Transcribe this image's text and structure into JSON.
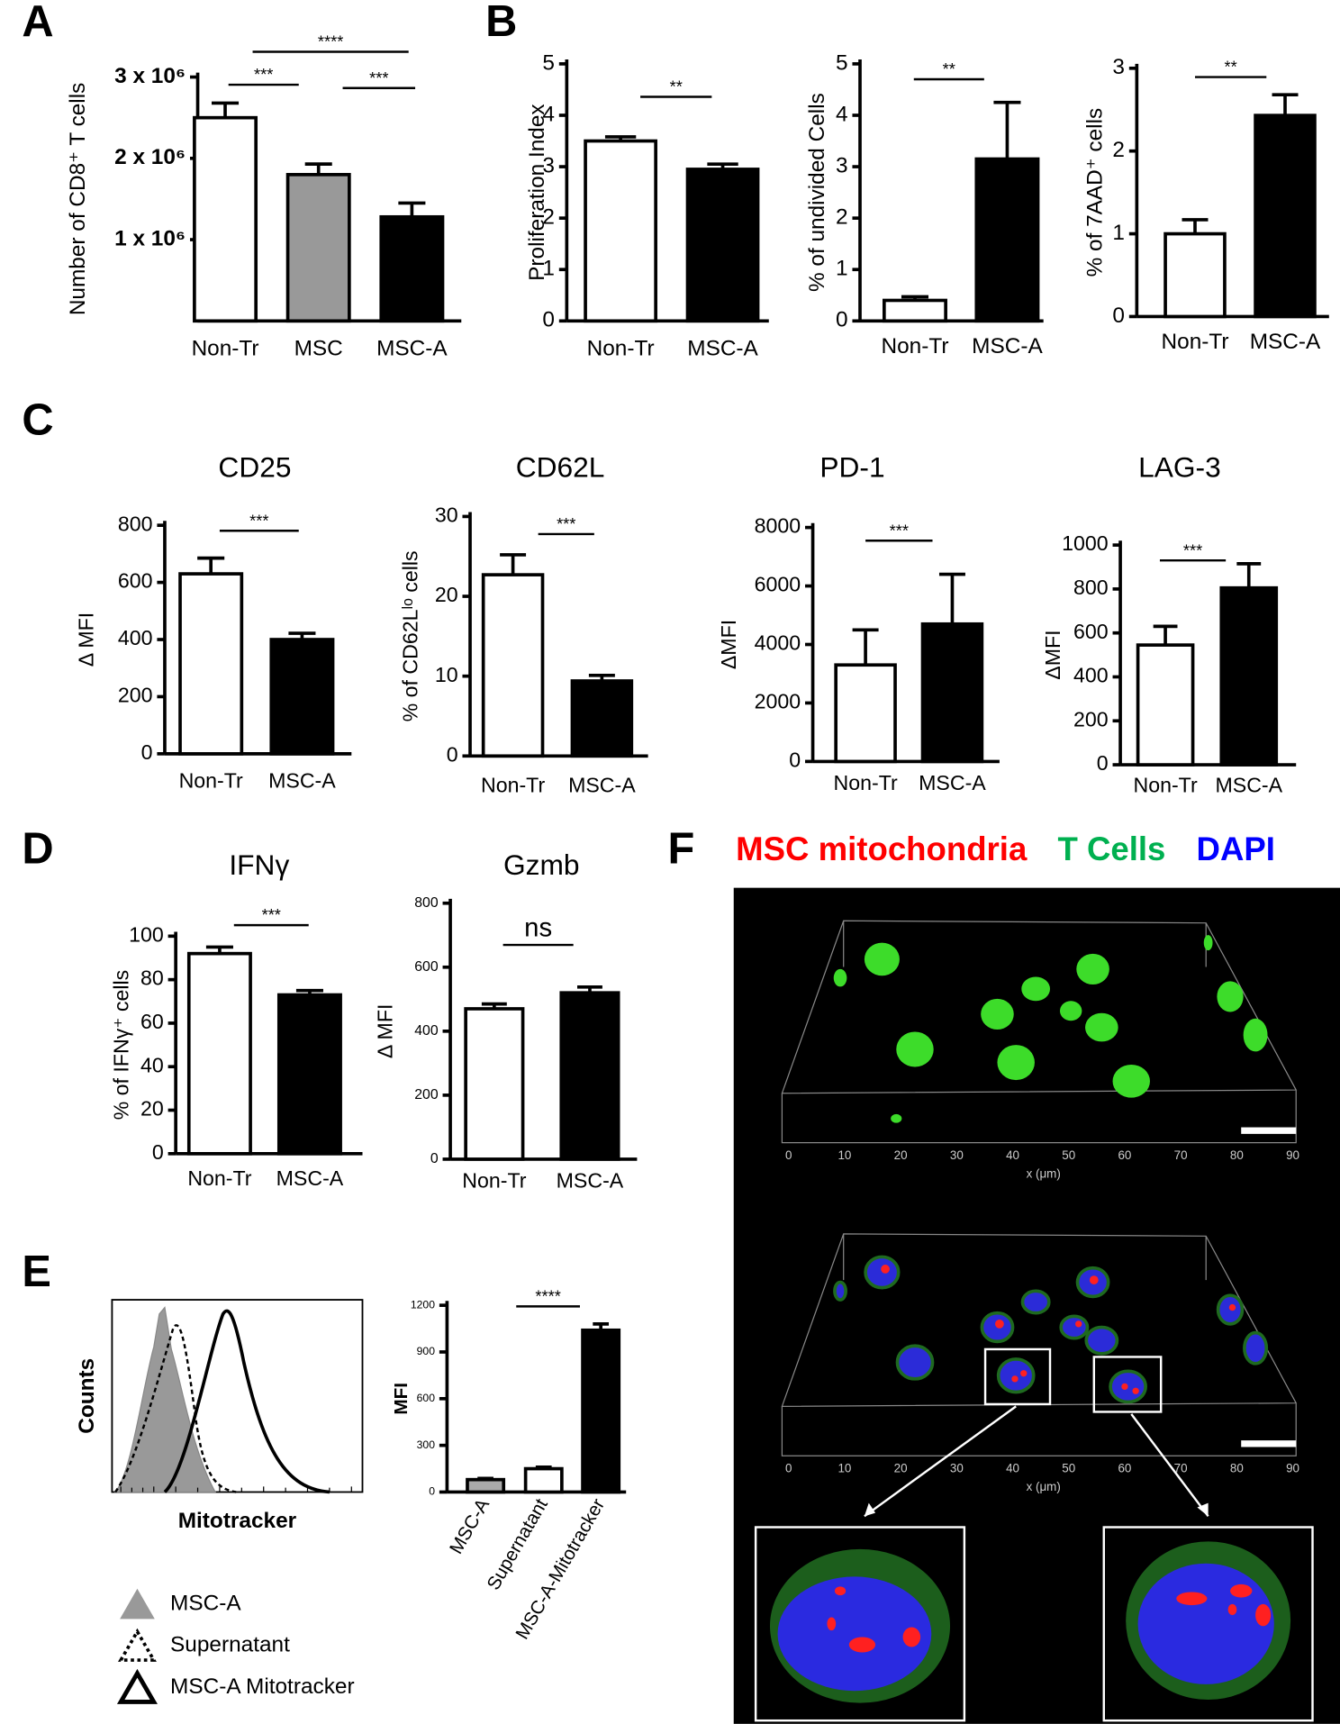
{
  "panel_labels": [
    "A",
    "B",
    "C",
    "D",
    "E",
    "F"
  ],
  "chart_data": [
    {
      "type": "bar",
      "ylabel": "Number of CD8⁺ T cells",
      "categories": [
        "Non-Tr",
        "MSC",
        "MSC-A"
      ],
      "values": [
        2500000,
        1800000,
        1280000
      ],
      "errors": [
        180000,
        130000,
        170000
      ],
      "colors": [
        "#ffffff",
        "#999999",
        "#000000"
      ],
      "ylim": [
        0,
        3000000
      ],
      "yticks": [
        {
          "value": 1000000,
          "label": "1 x 10⁶"
        },
        {
          "value": 2000000,
          "label": "2 x 10⁶"
        },
        {
          "value": 3000000,
          "label": "3 x 10⁶"
        }
      ],
      "annotations": [
        {
          "text": "***",
          "between": [
            0,
            1
          ]
        },
        {
          "text": "***",
          "between": [
            1,
            2
          ]
        },
        {
          "text": "****",
          "between": [
            0,
            2
          ]
        }
      ]
    },
    {
      "type": "bar",
      "ylabel": "Proliferation Index",
      "categories": [
        "Non-Tr",
        "MSC-A"
      ],
      "values": [
        3.5,
        2.95
      ],
      "errors": [
        0.08,
        0.1
      ],
      "colors": [
        "#ffffff",
        "#000000"
      ],
      "ylim": [
        0,
        5
      ],
      "yticks": [
        0,
        1,
        2,
        3,
        4,
        5
      ],
      "annotations": [
        {
          "text": "**",
          "between": [
            0,
            1
          ]
        }
      ]
    },
    {
      "type": "bar",
      "ylabel": "% of undivided Cells",
      "categories": [
        "Non-Tr",
        "MSC-A"
      ],
      "values": [
        0.4,
        3.15
      ],
      "errors": [
        0.07,
        1.1
      ],
      "colors": [
        "#ffffff",
        "#000000"
      ],
      "ylim": [
        0,
        5
      ],
      "yticks": [
        0,
        1,
        2,
        3,
        4,
        5
      ],
      "annotations": [
        {
          "text": "**",
          "between": [
            0,
            1
          ]
        }
      ]
    },
    {
      "type": "bar",
      "ylabel": "% of 7AAD⁺ cells",
      "categories": [
        "Non-Tr",
        "MSC-A"
      ],
      "values": [
        1.0,
        2.43
      ],
      "errors": [
        0.17,
        0.25
      ],
      "colors": [
        "#ffffff",
        "#000000"
      ],
      "ylim": [
        0,
        3
      ],
      "yticks": [
        0,
        1,
        2,
        3
      ],
      "annotations": [
        {
          "text": "**",
          "between": [
            0,
            1
          ]
        }
      ]
    },
    {
      "type": "bar",
      "title": "CD25",
      "ylabel": "Δ MFI",
      "categories": [
        "Non-Tr",
        "MSC-A"
      ],
      "values": [
        630,
        400
      ],
      "errors": [
        55,
        22
      ],
      "colors": [
        "#ffffff",
        "#000000"
      ],
      "ylim": [
        0,
        800
      ],
      "yticks": [
        0,
        200,
        400,
        600,
        800
      ],
      "annotations": [
        {
          "text": "***",
          "between": [
            0,
            1
          ]
        }
      ]
    },
    {
      "type": "bar",
      "title": "CD62L",
      "ylabel": "% of CD62Lˡᵒ cells",
      "categories": [
        "Non-Tr",
        "MSC-A"
      ],
      "values": [
        22.7,
        9.4
      ],
      "errors": [
        2.5,
        0.7
      ],
      "colors": [
        "#ffffff",
        "#000000"
      ],
      "ylim": [
        0,
        30
      ],
      "yticks": [
        0,
        10,
        20,
        30
      ],
      "annotations": [
        {
          "text": "***",
          "between": [
            0,
            1
          ]
        }
      ]
    },
    {
      "type": "bar",
      "title": "PD-1",
      "ylabel": "ΔMFI",
      "categories": [
        "Non-Tr",
        "MSC-A"
      ],
      "values": [
        3300,
        4700
      ],
      "errors": [
        1200,
        1700
      ],
      "colors": [
        "#ffffff",
        "#000000"
      ],
      "ylim": [
        0,
        8000
      ],
      "yticks": [
        0,
        2000,
        4000,
        6000,
        8000
      ],
      "annotations": [
        {
          "text": "***",
          "between": [
            0,
            1
          ]
        }
      ]
    },
    {
      "type": "bar",
      "title": "LAG-3",
      "ylabel": "ΔMFI",
      "categories": [
        "Non-Tr",
        "MSC-A"
      ],
      "values": [
        545,
        805
      ],
      "errors": [
        85,
        110
      ],
      "colors": [
        "#ffffff",
        "#000000"
      ],
      "ylim": [
        0,
        1000
      ],
      "yticks": [
        0,
        200,
        400,
        600,
        800,
        1000
      ],
      "annotations": [
        {
          "text": "***",
          "between": [
            0,
            1
          ]
        }
      ]
    },
    {
      "type": "bar",
      "title": "IFNγ",
      "ylabel": "% of IFNγ⁺ cells",
      "categories": [
        "Non-Tr",
        "MSC-A"
      ],
      "values": [
        92,
        73
      ],
      "errors": [
        3,
        2
      ],
      "colors": [
        "#ffffff",
        "#000000"
      ],
      "ylim": [
        0,
        100
      ],
      "yticks": [
        0,
        20,
        40,
        60,
        80,
        100
      ],
      "annotations": [
        {
          "text": "***",
          "between": [
            0,
            1
          ]
        }
      ]
    },
    {
      "type": "bar",
      "title": "Gzmb",
      "ylabel": "Δ MFI",
      "categories": [
        "Non-Tr",
        "MSC-A"
      ],
      "values": [
        470,
        520
      ],
      "errors": [
        15,
        18
      ],
      "colors": [
        "#ffffff",
        "#000000"
      ],
      "ylim": [
        0,
        800
      ],
      "yticks": [
        0,
        200,
        400,
        600,
        800
      ],
      "annotations": [
        {
          "text": "ns",
          "between": [
            0,
            1
          ]
        }
      ]
    },
    {
      "type": "density",
      "xlabel": "Mitotracker",
      "ylabel": "Counts",
      "xscale": "log",
      "series": [
        {
          "name": "MSC-A",
          "style": "filled",
          "color": "#999999"
        },
        {
          "name": "Supernatant",
          "style": "dashed",
          "color": "#000000"
        },
        {
          "name": "MSC-A Mitotracker",
          "style": "solid",
          "color": "#000000"
        }
      ]
    },
    {
      "type": "bar",
      "ylabel": "MFI",
      "categories": [
        "MSC-A",
        "Supernatant",
        "MSC-A-Mitotracker"
      ],
      "values": [
        80,
        150,
        1040
      ],
      "errors": [
        8,
        10,
        40
      ],
      "colors": [
        "#aaaaaa",
        "#ffffff",
        "#000000"
      ],
      "ylim": [
        0,
        1200
      ],
      "yticks": [
        0,
        300,
        600,
        900,
        1200
      ],
      "annotations": [
        {
          "text": "****",
          "between": [
            1,
            2
          ]
        }
      ]
    }
  ],
  "image_panel": {
    "legend": [
      {
        "text": "MSC mitochondria",
        "color": "#ff0000"
      },
      {
        "text": "T Cells",
        "color": "#00b050"
      },
      {
        "text": "DAPI",
        "color": "#0000ff"
      }
    ],
    "x_axis_label": "x (μm)",
    "xticks": [
      0,
      10,
      20,
      30,
      40,
      50,
      60,
      70,
      80,
      90
    ]
  }
}
